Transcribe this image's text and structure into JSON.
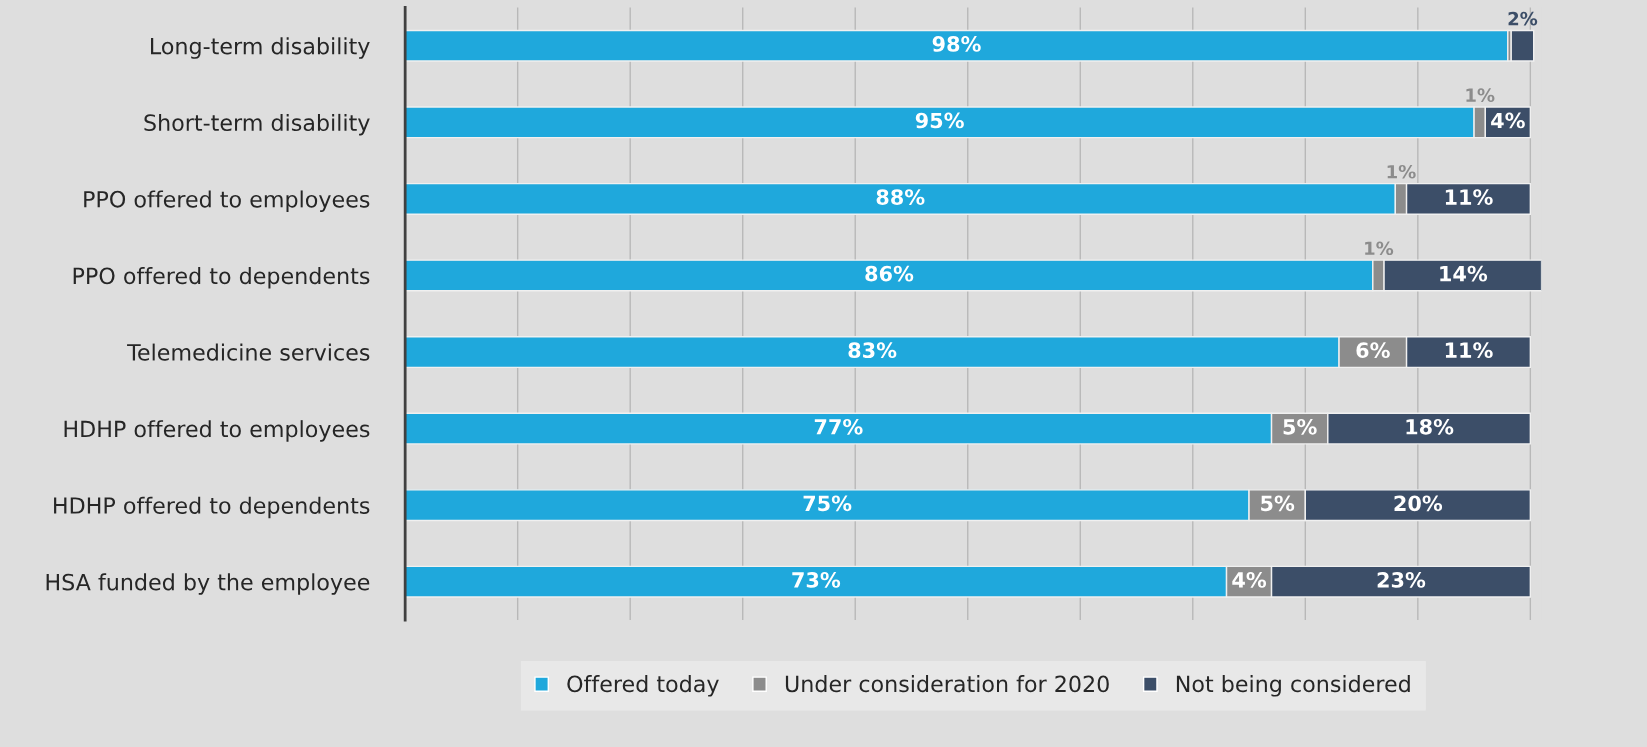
{
  "chart_data": {
    "type": "bar",
    "orientation": "horizontal",
    "stacked": true,
    "categories": [
      "Long-term disability",
      "Short-term disability",
      "PPO offered to employees",
      "PPO offered to dependents",
      "Telemedicine services",
      "HDHP offered to employees",
      "HDHP offered to dependents",
      "HSA funded by the employee"
    ],
    "series": [
      {
        "name": "Offered today",
        "color": "#1fa8dc",
        "values": [
          98,
          95,
          88,
          86,
          83,
          77,
          75,
          73
        ],
        "value_labels": [
          "98%",
          "95%",
          "88%",
          "86%",
          "83%",
          "77%",
          "75%",
          "73%"
        ]
      },
      {
        "name": "Under consideration for 2020",
        "color": "#8c8c8c",
        "values": [
          0.3,
          1,
          1,
          1,
          6,
          5,
          5,
          4
        ],
        "value_labels": [
          null,
          "1%",
          "1%",
          "1%",
          "6%",
          "5%",
          "5%",
          "4%"
        ]
      },
      {
        "name": "Not being considered",
        "color": "#3c4e68",
        "values": [
          2,
          4,
          11,
          14,
          11,
          18,
          20,
          23
        ],
        "value_labels": [
          "2%",
          "4%",
          "11%",
          "14%",
          "11%",
          "18%",
          "20%",
          "23%"
        ]
      }
    ],
    "xlim": [
      0,
      101
    ],
    "xticks": [
      {
        "value": 0,
        "label": null
      },
      {
        "value": 10,
        "label": null
      },
      {
        "value": 20,
        "label": null
      },
      {
        "value": 30,
        "label": null
      },
      {
        "value": 40,
        "label": null
      },
      {
        "value": 50,
        "label": null
      },
      {
        "value": 60,
        "label": null
      },
      {
        "value": 70,
        "label": null
      },
      {
        "value": 80,
        "label": null
      },
      {
        "value": 90,
        "label": null
      },
      {
        "value": 100,
        "label": null
      }
    ],
    "grid": "x",
    "legend": "bottom",
    "tick_labels": "y"
  }
}
